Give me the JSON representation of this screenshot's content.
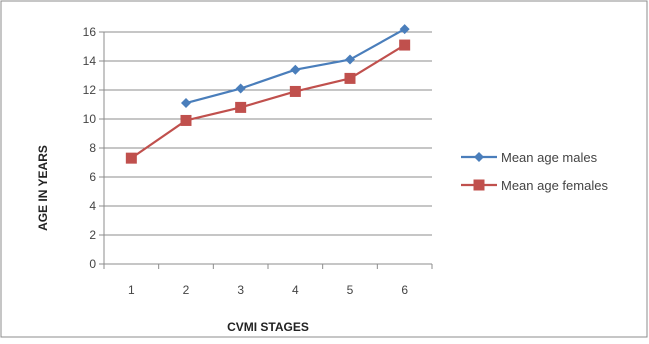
{
  "chart_data": {
    "type": "line",
    "title": "",
    "xlabel": "CVMI STAGES",
    "ylabel": "AGE IN YEARS",
    "categories": [
      "1",
      "2",
      "3",
      "4",
      "5",
      "6"
    ],
    "ylim": [
      0,
      16
    ],
    "yticks": [
      "0",
      "2",
      "4",
      "6",
      "8",
      "10",
      "12",
      "14",
      "16"
    ],
    "grid": true,
    "legend_position": "right",
    "series": [
      {
        "name": "Mean age males",
        "color": "#4a7ebb",
        "marker": "diamond",
        "values": [
          null,
          11.1,
          12.1,
          13.4,
          14.1,
          16.2
        ]
      },
      {
        "name": "Mean age females",
        "color": "#c0504d",
        "marker": "square",
        "values": [
          7.3,
          9.9,
          10.8,
          11.9,
          12.8,
          15.1
        ]
      }
    ]
  }
}
